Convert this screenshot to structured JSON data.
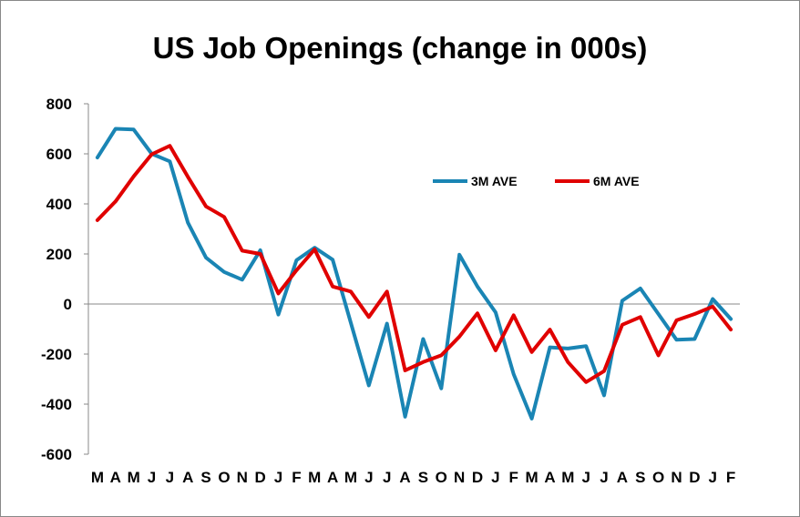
{
  "chart_data": {
    "type": "line",
    "title": "US Job Openings (change in 000s)",
    "xlabel": "",
    "ylabel": "",
    "ylim": [
      -600,
      800
    ],
    "yticks": [
      800,
      600,
      400,
      200,
      0,
      -200,
      -400,
      -600
    ],
    "grid": false,
    "legend_position": "top-right",
    "categories": [
      "M",
      "A",
      "M",
      "J",
      "J",
      "A",
      "S",
      "O",
      "N",
      "D",
      "J",
      "F",
      "M",
      "A",
      "M",
      "J",
      "J",
      "A",
      "S",
      "O",
      "N",
      "D",
      "J",
      "F",
      "M",
      "A",
      "M",
      "J",
      "J",
      "A",
      "S",
      "O",
      "N",
      "D",
      "J",
      "F"
    ],
    "series": [
      {
        "name": "3M AVE",
        "color": "#1a85b4",
        "values": [
          585,
          700,
          697,
          600,
          570,
          325,
          185,
          128,
          97,
          215,
          -42,
          175,
          225,
          177,
          -75,
          -325,
          -78,
          -450,
          -140,
          -337,
          197,
          70,
          -33,
          -280,
          -458,
          -173,
          -178,
          -168,
          -365,
          13,
          62,
          -40,
          -143,
          -140,
          20,
          -60
        ]
      },
      {
        "name": "6M AVE",
        "color": "#e00000",
        "values": [
          335,
          410,
          510,
          598,
          632,
          508,
          390,
          348,
          213,
          200,
          42,
          135,
          218,
          70,
          50,
          -52,
          50,
          -265,
          -232,
          -205,
          -130,
          -37,
          -185,
          -45,
          -192,
          -102,
          -232,
          -312,
          -268,
          -83,
          -52,
          -205,
          -65,
          -40,
          -10,
          -102
        ]
      }
    ]
  }
}
